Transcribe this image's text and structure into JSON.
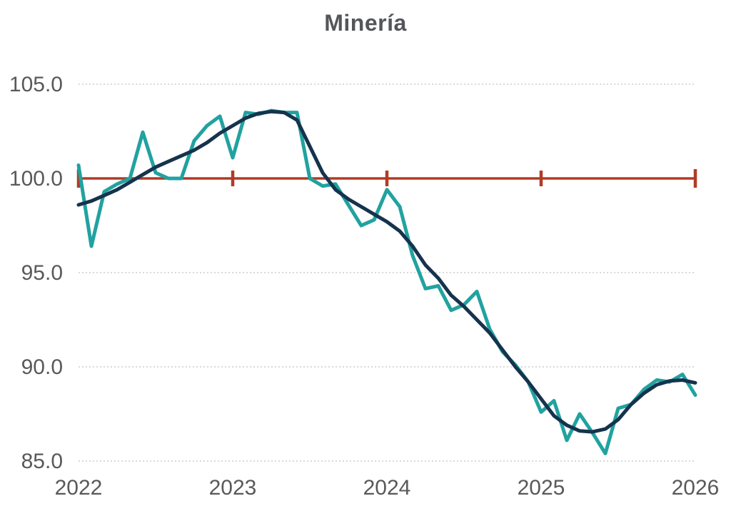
{
  "title": "Minería",
  "colors": {
    "background": "#ffffff",
    "title": "#55565a",
    "axis_label": "#595959",
    "gridline": "#c2c2c2",
    "reference_line": "#b13b26",
    "monthly_line": "#21a2a0",
    "trend_line": "#16334d"
  },
  "chart_data": {
    "type": "line",
    "title": "Minería",
    "xlabel": "",
    "ylabel": "",
    "x_unit": "monthly, Jan 2022 - Jan 2026",
    "start_year": 2022,
    "points_per_year": 12,
    "x_tick_labels": [
      "2022",
      "2023",
      "2024",
      "2025",
      "2026"
    ],
    "y_tick_labels": [
      "105.0",
      "100.0",
      "95.0",
      "90.0",
      "85.0"
    ],
    "y_ticks": [
      105.0,
      100.0,
      95.0,
      90.0,
      85.0
    ],
    "ylim": [
      85.0,
      105.0
    ],
    "grid": "horizontal-dotted",
    "legend": "none",
    "reference_value": 100.0,
    "series": [
      {
        "name": "monthly-series",
        "color_key": "monthly_line",
        "values": [
          100.7,
          96.4,
          99.3,
          99.7,
          100.0,
          102.45,
          100.3,
          100.0,
          100.0,
          102.0,
          102.8,
          103.3,
          101.1,
          103.5,
          103.4,
          103.6,
          103.5,
          103.5,
          100.0,
          99.6,
          99.7,
          98.6,
          97.5,
          97.8,
          99.4,
          98.5,
          95.9,
          94.15,
          94.3,
          93.0,
          93.3,
          94.0,
          92.0,
          90.8,
          90.1,
          89.2,
          87.6,
          88.2,
          86.1,
          87.5,
          86.5,
          85.4,
          87.8,
          88.0,
          88.8,
          89.3,
          89.2,
          89.6,
          88.5
        ]
      },
      {
        "name": "trend-series",
        "color_key": "trend_line",
        "values": [
          98.6,
          98.8,
          99.1,
          99.4,
          99.8,
          100.2,
          100.6,
          100.9,
          101.2,
          101.5,
          101.9,
          102.4,
          102.8,
          103.2,
          103.45,
          103.55,
          103.5,
          103.1,
          101.7,
          100.3,
          99.4,
          98.9,
          98.5,
          98.1,
          97.7,
          97.2,
          96.4,
          95.4,
          94.7,
          93.8,
          93.2,
          92.5,
          91.8,
          90.9,
          90.0,
          89.2,
          88.3,
          87.4,
          86.9,
          86.6,
          86.55,
          86.7,
          87.2,
          88.0,
          88.6,
          89.05,
          89.25,
          89.3,
          89.15
        ]
      }
    ]
  }
}
